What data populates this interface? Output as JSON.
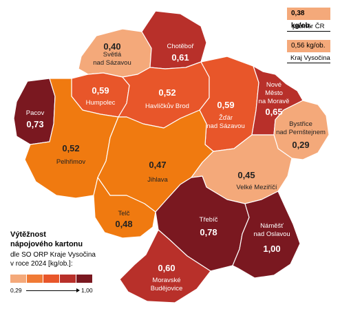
{
  "reference": {
    "national": {
      "value": "0,38 kg/ob.",
      "label": "průměr ČR",
      "color": "#F4A97A"
    },
    "regional": {
      "value": "0,56 kg/ob.",
      "label": "Kraj Vysočina",
      "color": "#F4A97A"
    }
  },
  "legend": {
    "title_line1": "Výtěžnost",
    "title_line2": "nápojového kartonu",
    "sub_line1": "dle SO ORP Kraje Vysočina",
    "sub_line2": "v roce 2024 [kg/ob.]:",
    "min": "0,29",
    "max": "1,00",
    "colors": [
      "#F4A97A",
      "#F07A35",
      "#E8562A",
      "#B8302A",
      "#7A1820"
    ]
  },
  "regions": [
    {
      "id": "svetla",
      "name_lines": [
        "Světlá",
        "nad Sázavou"
      ],
      "value": "0,40",
      "color": "#F4A97A"
    },
    {
      "id": "chotebor",
      "name_lines": [
        "Chotěboř"
      ],
      "value": "0,61",
      "color": "#B8302A"
    },
    {
      "id": "humpolec",
      "name_lines": [
        "Humpolec"
      ],
      "value": "0,59",
      "color": "#E8562A"
    },
    {
      "id": "havlickuv",
      "name_lines": [
        "Havlíčkův Brod"
      ],
      "value": "0,52",
      "color": "#E8562A"
    },
    {
      "id": "zdar",
      "name_lines": [
        "Žďár",
        "nad Sázavou"
      ],
      "value": "0,59",
      "color": "#E8562A"
    },
    {
      "id": "nove_mesto",
      "name_lines": [
        "Nové",
        "Město",
        "na Moravě"
      ],
      "value": "0,65",
      "color": "#B8302A"
    },
    {
      "id": "pacov",
      "name_lines": [
        "Pacov"
      ],
      "value": "0,73",
      "color": "#7A1820"
    },
    {
      "id": "pelhrimov",
      "name_lines": [
        "Pelhřimov"
      ],
      "value": "0,52",
      "color": "#F07A10"
    },
    {
      "id": "jihlava",
      "name_lines": [
        "Jihlava"
      ],
      "value": "0,47",
      "color": "#F07A10"
    },
    {
      "id": "bystrice",
      "name_lines": [
        "Bystřice",
        "nad Pernštejnem"
      ],
      "value": "0,29",
      "color": "#F4A97A"
    },
    {
      "id": "velke_mezirici",
      "name_lines": [
        "Velké Meziříčí"
      ],
      "value": "0,45",
      "color": "#F4A97A"
    },
    {
      "id": "telc",
      "name_lines": [
        "Telč"
      ],
      "value": "0,48",
      "color": "#F07A10"
    },
    {
      "id": "trebic",
      "name_lines": [
        "Třebíč"
      ],
      "value": "0,78",
      "color": "#7A1820"
    },
    {
      "id": "namest",
      "name_lines": [
        "Náměšť",
        "nad Oslavou"
      ],
      "value": "1,00",
      "color": "#7A1820"
    },
    {
      "id": "moravske",
      "name_lines": [
        "Moravské",
        "Budějovice"
      ],
      "value": "0,60",
      "color": "#B8302A"
    }
  ]
}
